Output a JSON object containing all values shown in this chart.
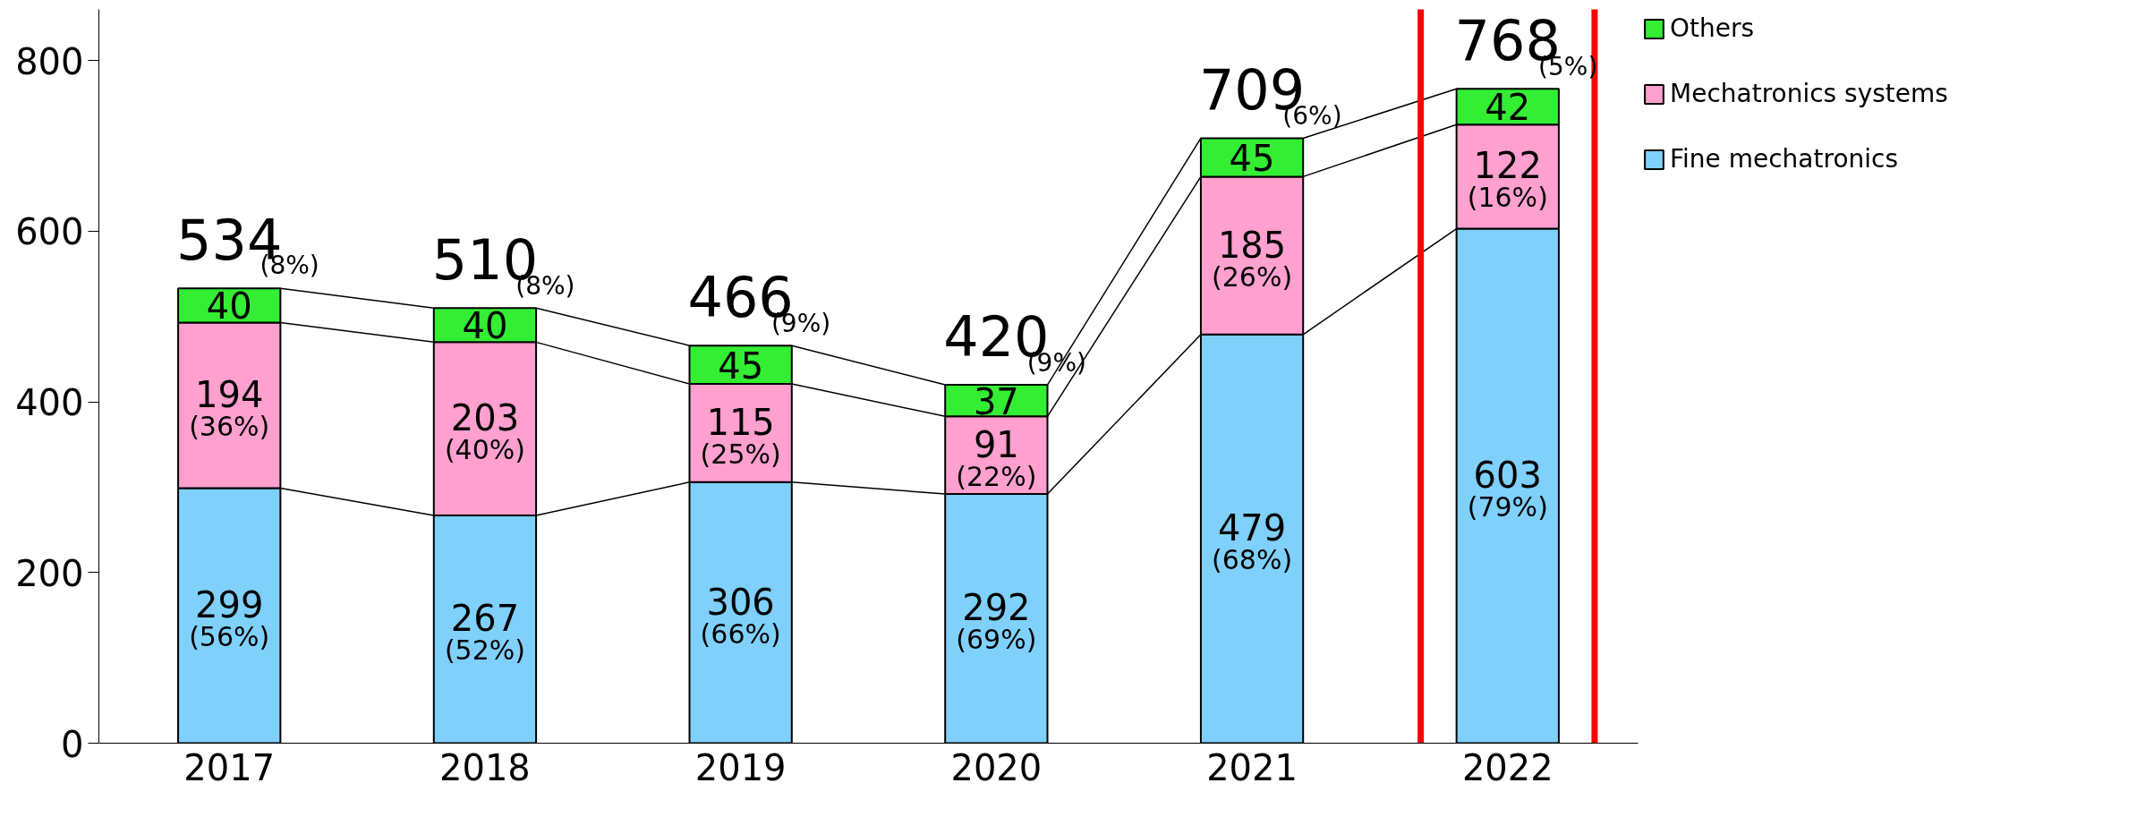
{
  "chart_data": {
    "type": "bar",
    "stacked": true,
    "categories": [
      "2017",
      "2018",
      "2019",
      "2020",
      "2021",
      "2022"
    ],
    "series": [
      {
        "name": "Fine mechatronics",
        "color": "#7fd0fb",
        "values": [
          299,
          267,
          306,
          292,
          479,
          603
        ],
        "value_labels": [
          "299\n(56%)",
          "267\n(52%)",
          "306\n(66%)",
          "292\n(69%)",
          "479\n(68%)",
          "603\n(79%)"
        ]
      },
      {
        "name": "Mechatronics systems",
        "color": "#ffa0cf",
        "values": [
          194,
          203,
          115,
          91,
          185,
          122
        ],
        "value_labels": [
          "194\n(36%)",
          "203\n(40%)",
          "115\n(25%)",
          "91\n(22%)",
          "185\n(26%)",
          "122\n(16%)"
        ]
      },
      {
        "name": "Others",
        "color": "#33ee33",
        "values": [
          40,
          40,
          45,
          37,
          45,
          42
        ],
        "value_labels": [
          "40",
          "40",
          "45",
          "37",
          "45",
          "42"
        ]
      }
    ],
    "totals": [
      "534",
      "510",
      "466",
      "420",
      "709",
      "768"
    ],
    "annotations": [
      {
        "text": "(8%)",
        "x": "2017",
        "y": 534
      },
      {
        "text": "(8%)",
        "x": "2018",
        "y": 510
      },
      {
        "text": "(9%)",
        "x": "2019",
        "y": 466
      },
      {
        "text": "(9%)",
        "x": "2020",
        "y": 420
      },
      {
        "text": "(6%)",
        "x": "2021",
        "y": 709
      },
      {
        "text": "(5%)",
        "x": "2022",
        "y": 767
      }
    ],
    "ylim": [
      0,
      860
    ],
    "yticks": [
      0,
      200,
      400,
      600,
      800
    ],
    "grid": false,
    "legend": "right"
  }
}
